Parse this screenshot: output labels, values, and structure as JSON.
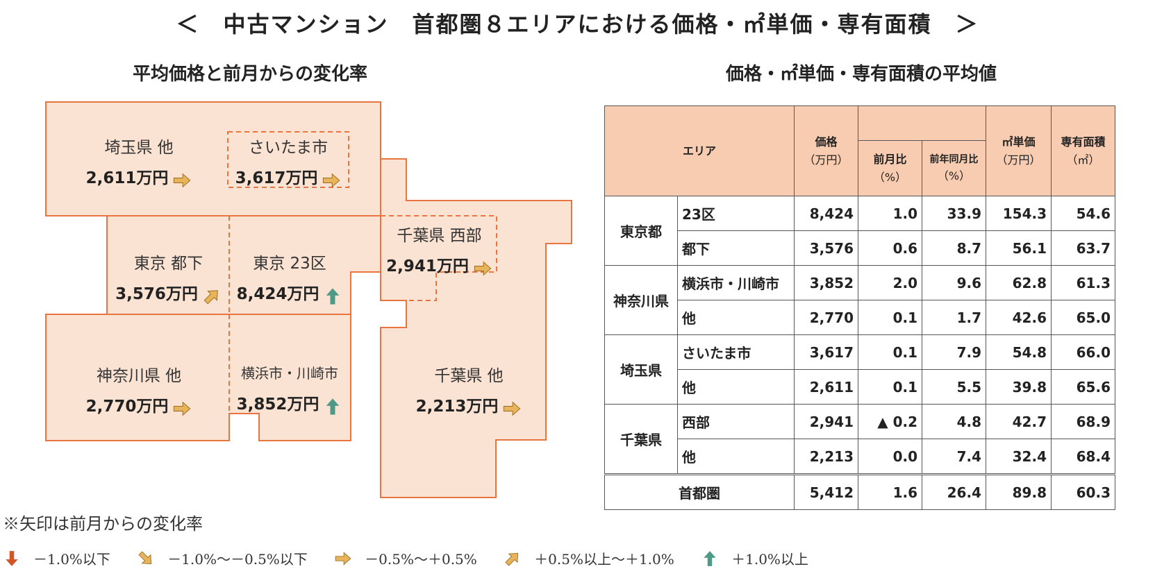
{
  "title": "＜　中古マンション　首都圏８エリアにおける価格・㎡単価・専有面積　＞",
  "map_title": "平均価格と前月からの変化率",
  "table_title": "価格・㎡単価・専有面積の平均値",
  "colors": {
    "region_fill": "#fbe3d3",
    "region_stroke": "#e8743f",
    "header_fill": "#f8ccb0",
    "arrow_flat": "#e8b45a",
    "arrow_up_slight": "#e8b45a",
    "arrow_up": "#4f9a86",
    "arrow_down_slight": "#e8b45a",
    "arrow_down": "#d2552a"
  },
  "map_areas": [
    {
      "name": "埼玉県 他",
      "price": "2,611万円",
      "arrow": "flat"
    },
    {
      "name": "さいたま市",
      "price": "3,617万円",
      "arrow": "flat"
    },
    {
      "name": "東京 都下",
      "price": "3,576万円",
      "arrow": "up-slight"
    },
    {
      "name": "東京 23区",
      "price": "8,424万円",
      "arrow": "up"
    },
    {
      "name": "千葉県 西部",
      "price": "2,941万円",
      "arrow": "flat"
    },
    {
      "name": "神奈川県 他",
      "price": "2,770万円",
      "arrow": "flat"
    },
    {
      "name": "横浜市・川崎市",
      "price": "3,852万円",
      "arrow": "up"
    },
    {
      "name": "千葉県 他",
      "price": "2,213万円",
      "arrow": "flat"
    }
  ],
  "table": {
    "headers": {
      "area": "エリア",
      "price": "価格",
      "price_unit": "（万円）",
      "mom": "前月比",
      "mom_unit": "（%）",
      "yoy": "前年同月比",
      "yoy_unit": "（%）",
      "unit_price": "㎡単価",
      "unit_price_unit": "（万円）",
      "area_size": "専有面積",
      "area_size_unit": "（㎡）"
    },
    "groups": [
      {
        "pref": "東京都",
        "rows": [
          {
            "sub": "23区",
            "price": "8,424",
            "mom": "1.0",
            "yoy": "33.9",
            "unit": "154.3",
            "size": "54.6"
          },
          {
            "sub": "都下",
            "price": "3,576",
            "mom": "0.6",
            "yoy": "8.7",
            "unit": "56.1",
            "size": "63.7"
          }
        ]
      },
      {
        "pref": "神奈川県",
        "rows": [
          {
            "sub": "横浜市・川崎市",
            "price": "3,852",
            "mom": "2.0",
            "yoy": "9.6",
            "unit": "62.8",
            "size": "61.3"
          },
          {
            "sub": "他",
            "price": "2,770",
            "mom": "0.1",
            "yoy": "1.7",
            "unit": "42.6",
            "size": "65.0"
          }
        ]
      },
      {
        "pref": "埼玉県",
        "rows": [
          {
            "sub": "さいたま市",
            "price": "3,617",
            "mom": "0.1",
            "yoy": "7.9",
            "unit": "54.8",
            "size": "66.0"
          },
          {
            "sub": "他",
            "price": "2,611",
            "mom": "0.1",
            "yoy": "5.5",
            "unit": "39.8",
            "size": "65.6"
          }
        ]
      },
      {
        "pref": "千葉県",
        "rows": [
          {
            "sub": "西部",
            "price": "2,941",
            "mom": "▲ 0.2",
            "yoy": "4.8",
            "unit": "42.7",
            "size": "68.9"
          },
          {
            "sub": "他",
            "price": "2,213",
            "mom": "0.0",
            "yoy": "7.4",
            "unit": "32.4",
            "size": "68.4"
          }
        ]
      }
    ],
    "total": {
      "label": "首都圏",
      "price": "5,412",
      "mom": "1.6",
      "yoy": "26.4",
      "unit": "89.8",
      "size": "60.3"
    }
  },
  "chart_data": {
    "type": "table",
    "columns": [
      "エリア",
      "価格（万円）",
      "前月比（%）",
      "前年同月比（%）",
      "㎡単価（万円）",
      "専有面積（㎡）"
    ],
    "rows": [
      [
        "東京都 23区",
        8424,
        1.0,
        33.9,
        154.3,
        54.6
      ],
      [
        "東京都 都下",
        3576,
        0.6,
        8.7,
        56.1,
        63.7
      ],
      [
        "神奈川県 横浜市・川崎市",
        3852,
        2.0,
        9.6,
        62.8,
        61.3
      ],
      [
        "神奈川県 他",
        2770,
        0.1,
        1.7,
        42.6,
        65.0
      ],
      [
        "埼玉県 さいたま市",
        3617,
        0.1,
        7.9,
        54.8,
        66.0
      ],
      [
        "埼玉県 他",
        2611,
        0.1,
        5.5,
        39.8,
        65.6
      ],
      [
        "千葉県 西部",
        2941,
        -0.2,
        4.8,
        42.7,
        68.9
      ],
      [
        "千葉県 他",
        2213,
        0.0,
        7.4,
        32.4,
        68.4
      ],
      [
        "首都圏",
        5412,
        1.6,
        26.4,
        89.8,
        60.3
      ]
    ]
  },
  "note": "※矢印は前月からの変化率",
  "legend": [
    {
      "label": "－1.0%以下",
      "arrow": "down"
    },
    {
      "label": "－1.0%～－0.5%以下",
      "arrow": "down-slight"
    },
    {
      "label": "－0.5%～＋0.5%",
      "arrow": "flat"
    },
    {
      "label": "＋0.5%以上～＋1.0%",
      "arrow": "up-slight"
    },
    {
      "label": "＋1.0%以上",
      "arrow": "up"
    }
  ]
}
